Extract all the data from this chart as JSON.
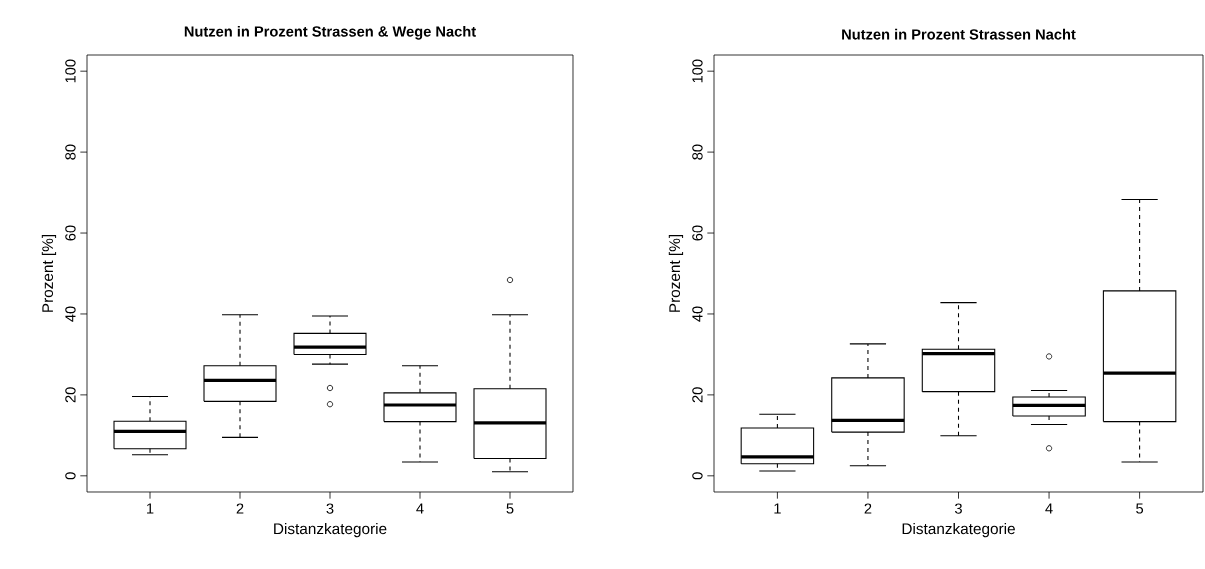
{
  "chart_data": [
    {
      "type": "box",
      "title": "Nutzen in Prozent Strassen & Wege Nacht",
      "xlabel": "Distanzkategorie",
      "ylabel": "Prozent [%]",
      "categories": [
        "1",
        "2",
        "3",
        "4",
        "5"
      ],
      "ylim": [
        -4,
        104
      ],
      "yticks": [
        0,
        20,
        40,
        60,
        80,
        100
      ],
      "boxes": [
        {
          "low": 5.2,
          "q1": 6.7,
          "median": 11.0,
          "q3": 13.5,
          "high": 19.6
        },
        {
          "low": 9.5,
          "q1": 18.4,
          "median": 23.6,
          "q3": 27.2,
          "high": 39.8
        },
        {
          "low": 27.6,
          "q1": 30.0,
          "median": 31.8,
          "q3": 35.2,
          "high": 39.5,
          "outliers": [
            21.7,
            17.7
          ]
        },
        {
          "low": 3.4,
          "q1": 13.4,
          "median": 17.5,
          "q3": 20.5,
          "high": 27.2
        },
        {
          "low": 1.0,
          "q1": 4.3,
          "median": 13.1,
          "q3": 21.5,
          "high": 39.8,
          "outliers": [
            48.4
          ]
        }
      ]
    },
    {
      "type": "box",
      "title": "Nutzen in Prozent Strassen Nacht",
      "xlabel": "Distanzkategorie",
      "ylabel": "Prozent [%]",
      "categories": [
        "1",
        "2",
        "3",
        "4",
        "5"
      ],
      "ylim": [
        -4,
        104
      ],
      "yticks": [
        0,
        20,
        40,
        60,
        80,
        100
      ],
      "boxes": [
        {
          "low": 1.2,
          "q1": 3.0,
          "median": 4.7,
          "q3": 11.8,
          "high": 15.2
        },
        {
          "low": 2.5,
          "q1": 10.8,
          "median": 13.7,
          "q3": 24.2,
          "high": 32.6
        },
        {
          "low": 9.9,
          "q1": 20.8,
          "median": 30.2,
          "q3": 31.3,
          "high": 42.8
        },
        {
          "low": 12.7,
          "q1": 14.8,
          "median": 17.4,
          "q3": 19.5,
          "high": 21.1,
          "outliers": [
            29.5,
            6.8
          ]
        },
        {
          "low": 3.4,
          "q1": 13.4,
          "median": 25.4,
          "q3": 45.7,
          "high": 68.3
        }
      ]
    }
  ]
}
